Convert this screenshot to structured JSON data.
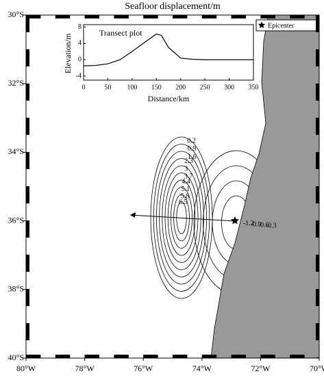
{
  "title": "Seafloor displacement/m",
  "map": {
    "xlim": [
      -80,
      -70
    ],
    "ylim": [
      -40,
      -30
    ],
    "xticks": [
      {
        "value": -80,
        "label": "80°W"
      },
      {
        "value": -78,
        "label": "78°W"
      },
      {
        "value": -76,
        "label": "76°W"
      },
      {
        "value": -74,
        "label": "74°W"
      },
      {
        "value": -72,
        "label": "72°W"
      },
      {
        "value": -70,
        "label": "70°W"
      }
    ],
    "yticks": [
      {
        "value": -30,
        "label": "30°S"
      },
      {
        "value": -32,
        "label": "32°S"
      },
      {
        "value": -34,
        "label": "34°S"
      },
      {
        "value": -36,
        "label": "36°S"
      },
      {
        "value": -38,
        "label": "38°S"
      },
      {
        "value": -40,
        "label": "40°S"
      }
    ],
    "legend": "Epicenter",
    "positive_levels": [
      0.2,
      0.9,
      1.6,
      2.3,
      3,
      3.7,
      4.4,
      5.1,
      5.8,
      6.5
    ],
    "negative_levels": [
      -0.3,
      -0.6,
      -0.9,
      -1.2
    ]
  },
  "inset": {
    "type": "line",
    "title": "Transect plot",
    "xlabel": "Distance/km",
    "ylabel": "Elevation/m",
    "x": [
      0,
      25,
      50,
      75,
      100,
      125,
      150,
      160,
      175,
      200,
      225,
      250,
      300,
      350
    ],
    "y": [
      -1.5,
      -1.4,
      -1,
      0,
      2,
      4.2,
      6.3,
      6,
      3,
      0.4,
      0.1,
      0,
      0,
      0
    ],
    "xlim": [
      0,
      350
    ],
    "ylim": [
      -5,
      8.6
    ],
    "xticks": [
      0,
      50,
      100,
      150,
      200,
      250,
      300,
      350
    ],
    "yticks": [
      -4,
      0,
      4,
      8
    ]
  }
}
